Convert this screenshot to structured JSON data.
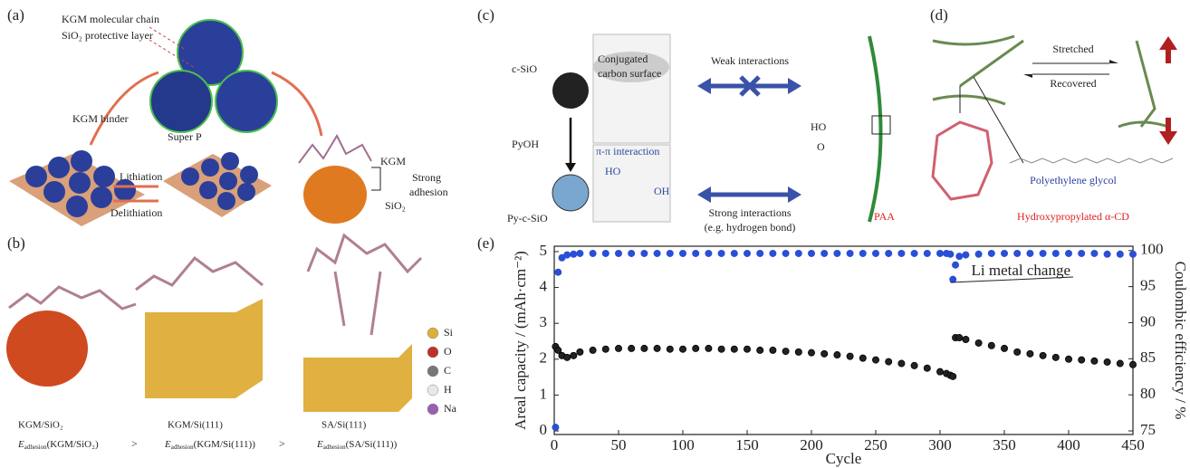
{
  "panels": {
    "a": {
      "label": "(a)",
      "chain": "KGM molecular chain",
      "layer": "SiO₂ protective layer",
      "binder": "KGM binder",
      "superp": "Super P",
      "lith": "Lithiation",
      "delith": "Delithiation",
      "kgm": "KGM",
      "strong": "Strong",
      "adhesion": "adhesion",
      "sio2": "SiO₂"
    },
    "b": {
      "label": "(b)",
      "legend": [
        "Si",
        "O",
        "C",
        "H",
        "Na"
      ],
      "legend_colors": [
        "#d8b03a",
        "#c0302a",
        "#777777",
        "#e8e8e8",
        "#9a5fb0"
      ],
      "names": [
        "KGM/SiO₂",
        "KGM/Si(111)",
        "SA/Si(111)"
      ],
      "formula": [
        {
          "symbol": "E",
          "sub": "adhesion",
          "arg": "(KGM/SiO₂)"
        },
        {
          "symbol": "E",
          "sub": "adhesion",
          "arg": "(KGM/Si(111))"
        },
        {
          "symbol": "E",
          "sub": "adhesion",
          "arg": "(SA/Si(111))"
        }
      ],
      "gt": [
        ">",
        ">"
      ]
    },
    "c": {
      "label": "(c)",
      "csio": "c-SiO",
      "pyoh": "PyOH",
      "pycsio": "Py-c-SiO",
      "conj1": "Conjugated",
      "conj2": "carbon surface",
      "pipi": "π-π interaction",
      "ho": "HO",
      "oh": "OH",
      "weak": "Weak interactions",
      "strong": "Strong interactions",
      "eg": "(e.g. hydrogen bond)",
      "paa_ho": "HO",
      "paa_o": "O",
      "paa": "PAA"
    },
    "d": {
      "label": "(d)",
      "stretched": "Stretched",
      "recovered": "Recovered",
      "peg": "Polyethylene glycol",
      "cd": "Hydroxypropylated α-CD"
    }
  },
  "chart_data": {
    "type": "scatter",
    "label": "(e)",
    "xlabel": "Cycle",
    "ylabel": "Areal capacity / (mAh·cm⁻²)",
    "y2label": "Coulombic efficiency / %",
    "annotation": "Li metal change",
    "x": [
      1,
      3,
      6,
      10,
      15,
      20,
      30,
      40,
      50,
      60,
      70,
      80,
      90,
      100,
      110,
      120,
      130,
      140,
      150,
      160,
      170,
      180,
      190,
      200,
      210,
      220,
      230,
      240,
      250,
      260,
      270,
      280,
      290,
      300,
      305,
      308,
      310,
      312,
      315,
      320,
      330,
      340,
      350,
      360,
      370,
      380,
      390,
      400,
      410,
      420,
      430,
      440,
      450
    ],
    "xlim": [
      0,
      450
    ],
    "xticks": [
      0,
      50,
      100,
      150,
      200,
      250,
      300,
      350,
      400,
      450
    ],
    "ylim": [
      -0.1,
      5.15
    ],
    "yticks": [
      0,
      1,
      2,
      3,
      4,
      5
    ],
    "y2lim": [
      74.5,
      100.6
    ],
    "y2ticks": [
      75,
      80,
      85,
      90,
      95,
      100
    ],
    "series": [
      {
        "color": "#222222",
        "values": [
          2.35,
          2.25,
          2.1,
          2.05,
          2.1,
          2.2,
          2.25,
          2.28,
          2.3,
          2.3,
          2.3,
          2.3,
          2.28,
          2.28,
          2.3,
          2.3,
          2.28,
          2.28,
          2.28,
          2.25,
          2.25,
          2.22,
          2.2,
          2.18,
          2.15,
          2.12,
          2.08,
          2.03,
          1.98,
          1.93,
          1.88,
          1.82,
          1.75,
          1.65,
          1.6,
          1.55,
          1.52,
          2.6,
          2.6,
          2.55,
          2.45,
          2.38,
          2.3,
          2.2,
          2.15,
          2.1,
          2.05,
          2.0,
          1.98,
          1.95,
          1.92,
          1.88,
          1.85
        ]
      },
      {
        "color": "#2a4fd6",
        "axis": "y2",
        "values": [
          75.5,
          97,
          99,
          99.4,
          99.5,
          99.6,
          99.6,
          99.6,
          99.6,
          99.6,
          99.6,
          99.6,
          99.6,
          99.6,
          99.6,
          99.6,
          99.6,
          99.6,
          99.6,
          99.6,
          99.6,
          99.6,
          99.6,
          99.6,
          99.6,
          99.6,
          99.6,
          99.6,
          99.6,
          99.6,
          99.6,
          99.6,
          99.6,
          99.6,
          99.6,
          99.5,
          96,
          98,
          99.2,
          99.4,
          99.5,
          99.6,
          99.6,
          99.6,
          99.6,
          99.6,
          99.6,
          99.6,
          99.6,
          99.6,
          99.5,
          99.5,
          99.5
        ]
      }
    ]
  }
}
